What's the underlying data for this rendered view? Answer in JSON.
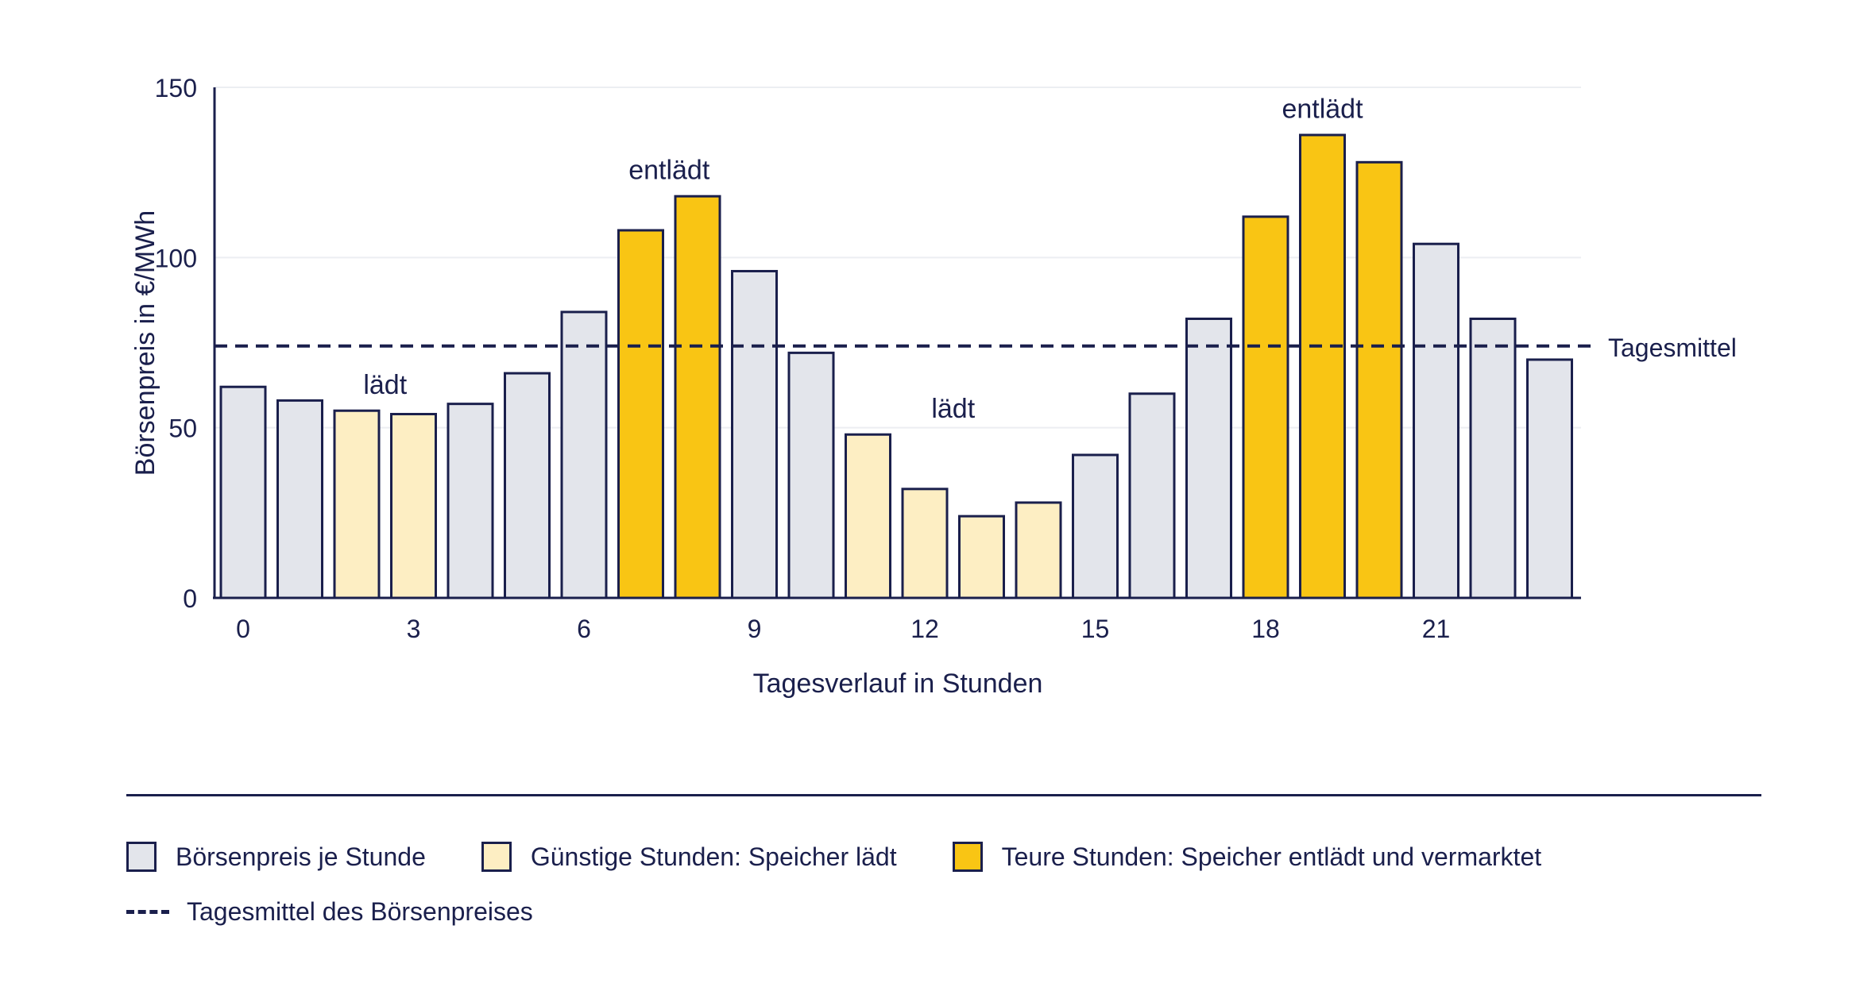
{
  "chart_data": {
    "type": "bar",
    "x": [
      0,
      1,
      2,
      3,
      4,
      5,
      6,
      7,
      8,
      9,
      10,
      11,
      12,
      13,
      14,
      15,
      16,
      17,
      18,
      19,
      20,
      21,
      22,
      23
    ],
    "values": [
      62,
      58,
      55,
      54,
      57,
      66,
      84,
      108,
      118,
      96,
      72,
      48,
      32,
      24,
      28,
      42,
      60,
      82,
      112,
      136,
      128,
      104,
      82,
      70
    ],
    "categories_type": [
      "normal",
      "normal",
      "cheap",
      "cheap",
      "normal",
      "normal",
      "normal",
      "expensive",
      "expensive",
      "normal",
      "normal",
      "cheap",
      "cheap",
      "cheap",
      "cheap",
      "normal",
      "normal",
      "normal",
      "expensive",
      "expensive",
      "expensive",
      "normal",
      "normal",
      "normal"
    ],
    "x_ticks": [
      0,
      3,
      6,
      9,
      12,
      15,
      18,
      21
    ],
    "y_ticks": [
      0,
      50,
      100,
      150
    ],
    "ylim": [
      0,
      150
    ],
    "xlabel": "Tagesverlauf in Stunden",
    "ylabel": "Börsenpreis in €/MWh",
    "mean_value": 74,
    "mean_label": "Tagesmittel",
    "annotations": [
      {
        "text": "lädt",
        "x": 2.5,
        "y": 60
      },
      {
        "text": "entlädt",
        "x": 7.5,
        "y": 123
      },
      {
        "text": "lädt",
        "x": 12.5,
        "y": 53
      },
      {
        "text": "entlädt",
        "x": 19,
        "y": 141
      }
    ],
    "grid": true,
    "colors": {
      "normal": "#e3e5eb",
      "cheap": "#fdeec3",
      "expensive": "#f9c514",
      "outline": "#1a1f4c",
      "grid": "#eceef2"
    }
  },
  "legend": {
    "items": [
      {
        "label": "Börsenpreis je Stunde",
        "color": "#e3e5eb"
      },
      {
        "label": "Günstige Stunden: Speicher lädt",
        "color": "#fdeec3"
      },
      {
        "label": "Teure Stunden: Speicher entlädt und vermarktet",
        "color": "#f9c514"
      }
    ],
    "mean_line_label": "Tagesmittel des Börsenpreises"
  }
}
